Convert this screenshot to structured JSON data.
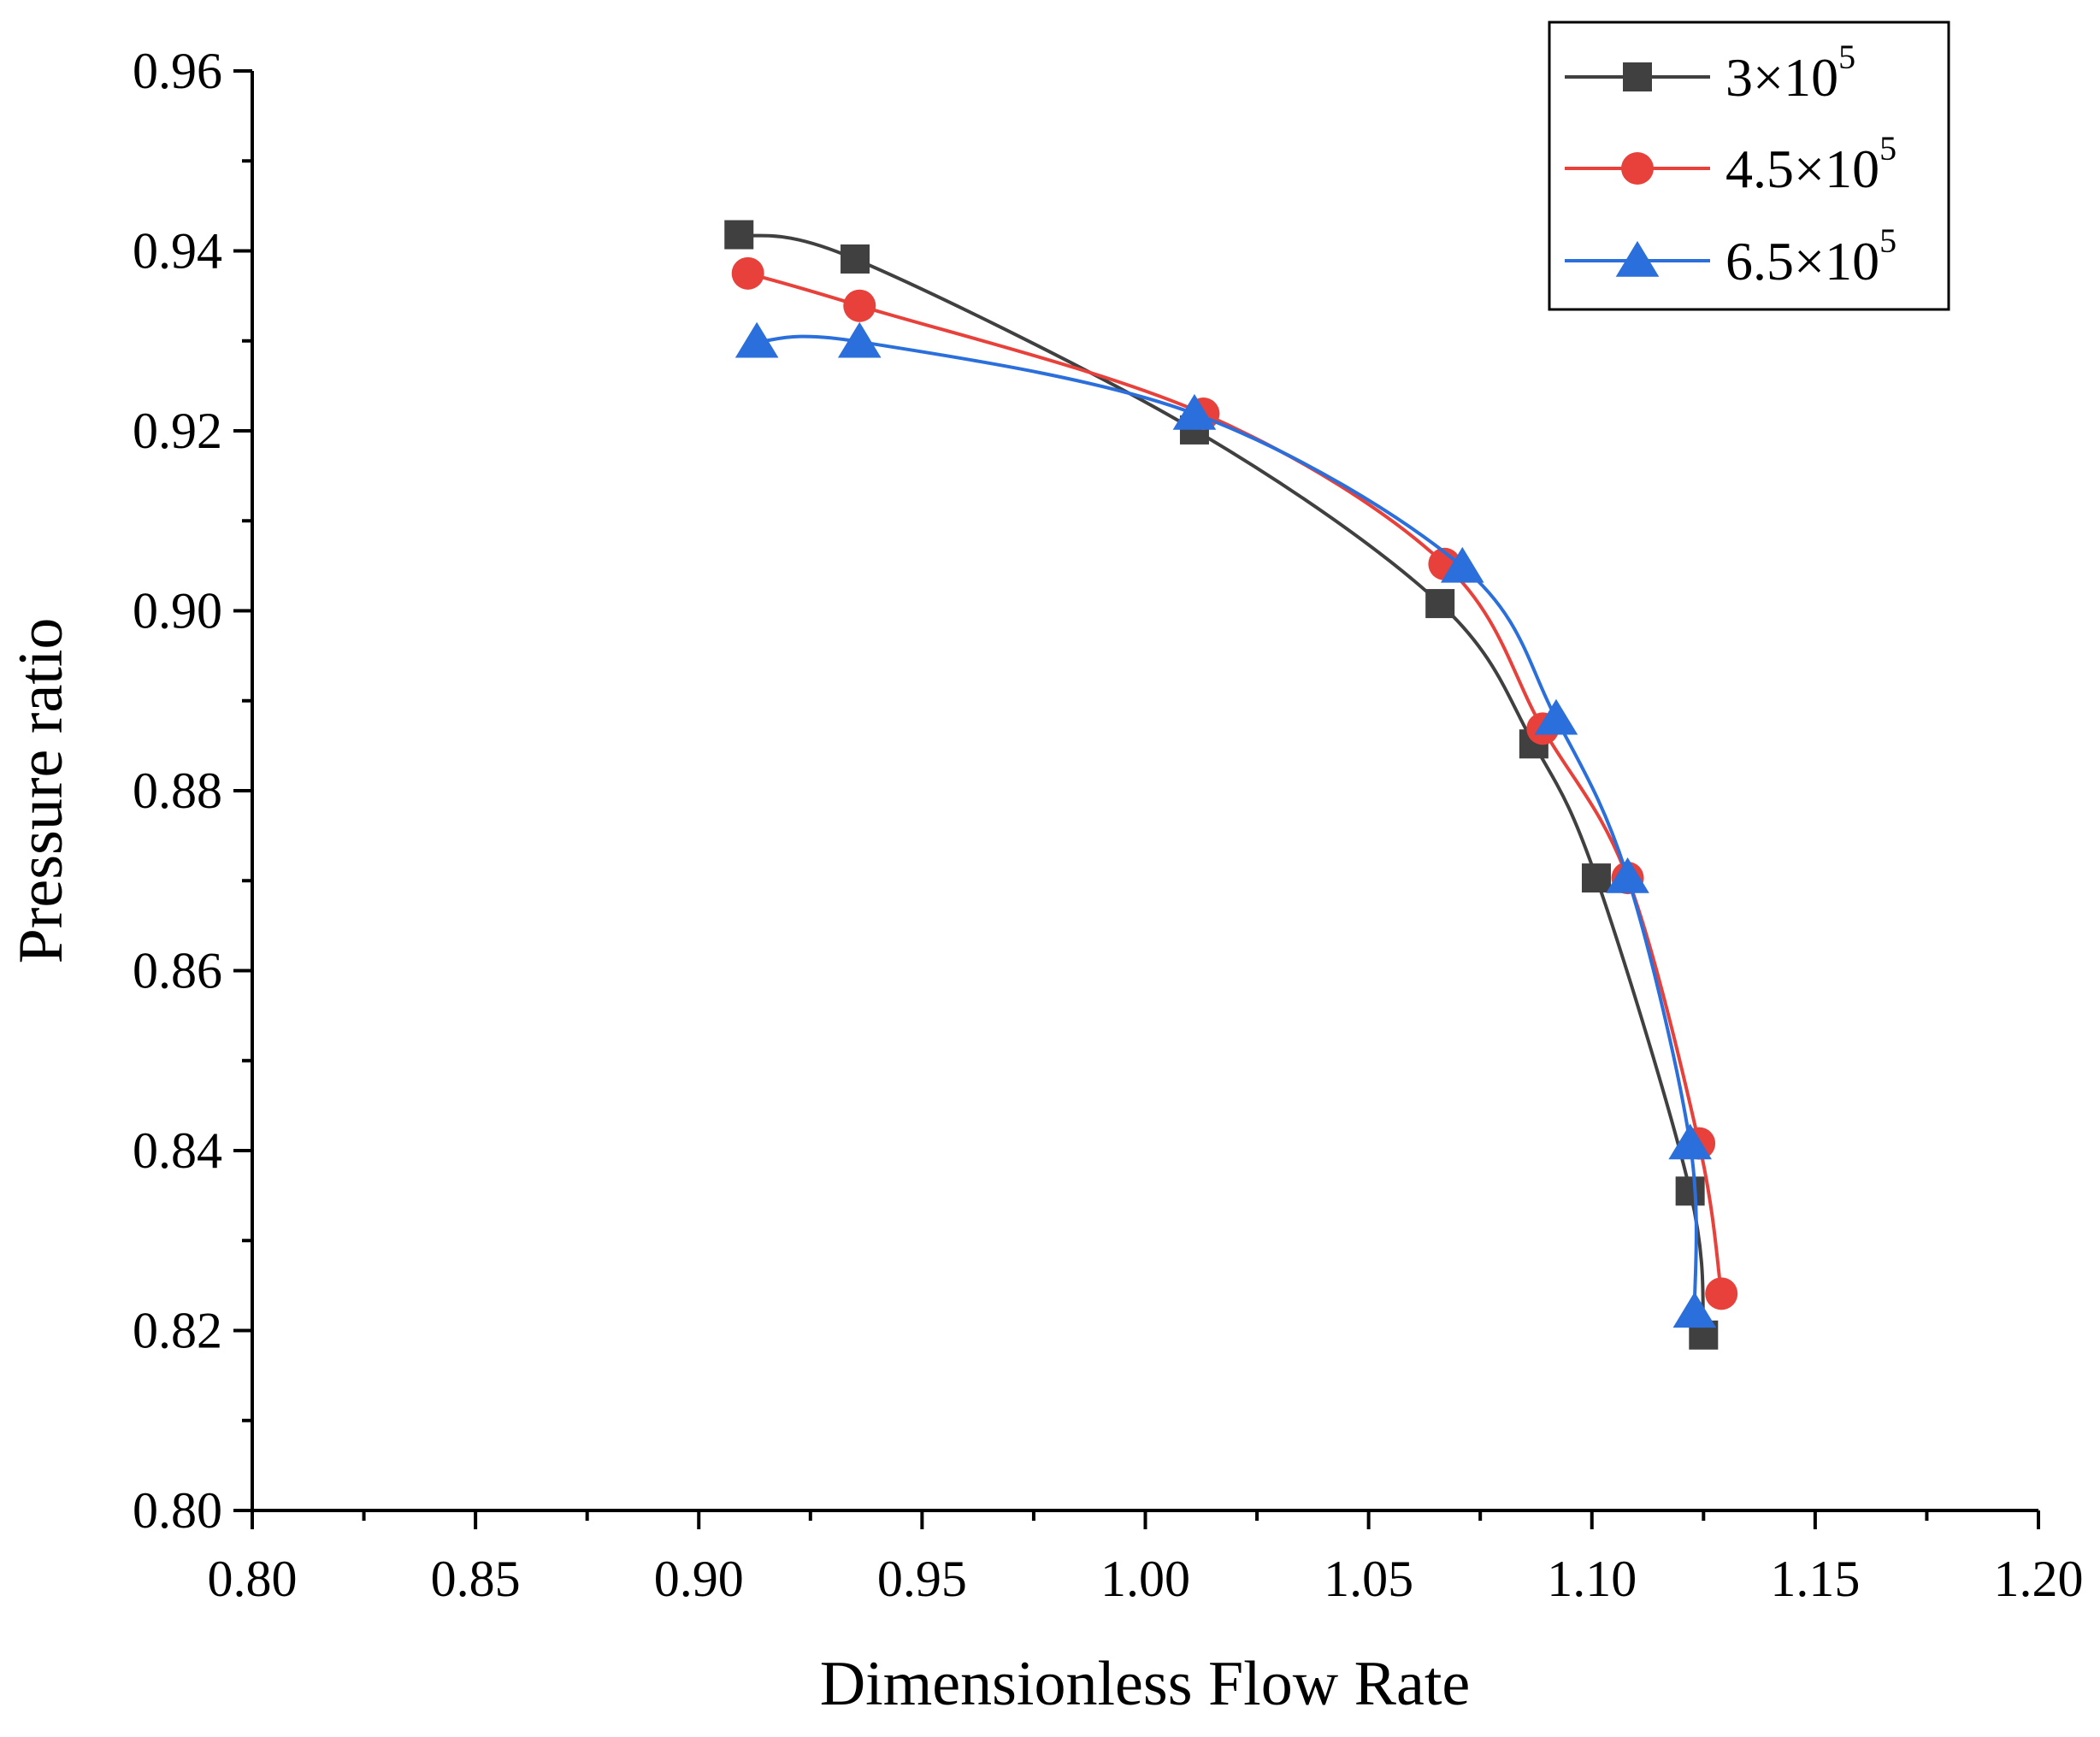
{
  "chart_data": {
    "type": "line",
    "xlabel": "Dimensionless Flow Rate",
    "ylabel": "Pressure ratio",
    "xlim": [
      0.8,
      1.2
    ],
    "ylim": [
      0.8,
      0.96
    ],
    "x_ticks": [
      "0.80",
      "0.85",
      "0.90",
      "0.95",
      "1.00",
      "1.05",
      "1.10",
      "1.15",
      "1.20"
    ],
    "y_ticks": [
      "0.80",
      "0.82",
      "0.84",
      "0.86",
      "0.88",
      "0.90",
      "0.92",
      "0.94",
      "0.96"
    ],
    "x_tick_values": [
      0.8,
      0.85,
      0.9,
      0.95,
      1.0,
      1.05,
      1.1,
      1.15,
      1.2
    ],
    "y_tick_values": [
      0.8,
      0.82,
      0.84,
      0.86,
      0.88,
      0.9,
      0.92,
      0.94,
      0.96
    ],
    "legend_position": "top-right",
    "series": [
      {
        "name": "3×10^5",
        "label_base": "3×10",
        "label_exp": "5",
        "color": "#404040",
        "marker": "square",
        "x": [
          0.909,
          0.935,
          1.011,
          1.066,
          1.087,
          1.101,
          1.122,
          1.125
        ],
        "y": [
          0.9418,
          0.9391,
          0.9201,
          0.9008,
          0.8852,
          0.8703,
          0.8355,
          0.8195
        ]
      },
      {
        "name": "4.5×10^5",
        "label_base": "4.5×10",
        "label_exp": "5",
        "color": "#e8403a",
        "marker": "circle",
        "x": [
          0.911,
          0.936,
          1.013,
          1.067,
          1.089,
          1.108,
          1.124,
          1.129
        ],
        "y": [
          0.9375,
          0.9339,
          0.9219,
          0.9052,
          0.8869,
          0.8703,
          0.8408,
          0.8241
        ]
      },
      {
        "name": "6.5×10^5",
        "label_base": "6.5×10",
        "label_exp": "5",
        "color": "#2a6fdb",
        "marker": "triangle",
        "x": [
          0.913,
          0.936,
          1.011,
          1.071,
          1.092,
          1.108,
          1.122,
          1.123
        ],
        "y": [
          0.9299,
          0.9299,
          0.9219,
          0.9049,
          0.888,
          0.8704,
          0.8408,
          0.8221
        ]
      }
    ]
  }
}
